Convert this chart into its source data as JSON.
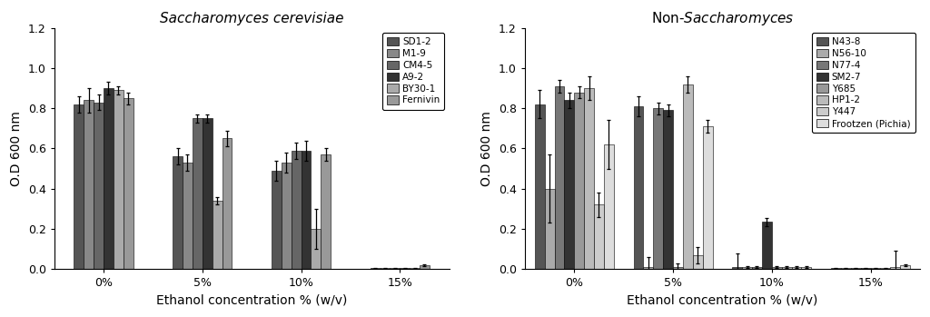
{
  "left_title": "Saccharomyces cerevisiae",
  "right_title_normal": "Non-",
  "right_title_italic": "Saccharomyces",
  "ylabel": "O.D 600 nm",
  "xlabel": "Ethanol concentration % (w/v)",
  "xtick_labels": [
    "0%",
    "5%",
    "10%",
    "15%"
  ],
  "ylim": [
    0.0,
    1.2
  ],
  "yticks": [
    0.0,
    0.2,
    0.4,
    0.6,
    0.8,
    1.0,
    1.2
  ],
  "left_series": {
    "labels": [
      "SD1-2",
      "M1-9",
      "CM4-5",
      "A9-2",
      "BY30-1",
      "Fernivin"
    ],
    "colors": [
      "#555555",
      "#888888",
      "#666666",
      "#333333",
      "#aaaaaa",
      "#999999"
    ],
    "values": [
      [
        0.82,
        0.56,
        0.49,
        0.005
      ],
      [
        0.84,
        0.53,
        0.53,
        0.005
      ],
      [
        0.83,
        0.75,
        0.59,
        0.005
      ],
      [
        0.9,
        0.75,
        0.59,
        0.005
      ],
      [
        0.89,
        0.34,
        0.2,
        0.005
      ],
      [
        0.85,
        0.65,
        0.57,
        0.02
      ]
    ],
    "errors": [
      [
        0.04,
        0.04,
        0.05,
        0.003
      ],
      [
        0.06,
        0.04,
        0.05,
        0.003
      ],
      [
        0.04,
        0.02,
        0.04,
        0.003
      ],
      [
        0.03,
        0.02,
        0.05,
        0.003
      ],
      [
        0.02,
        0.02,
        0.1,
        0.003
      ],
      [
        0.03,
        0.04,
        0.03,
        0.003
      ]
    ]
  },
  "right_series": {
    "labels": [
      "N43-8",
      "N56-10",
      "N77-4",
      "SM2-7",
      "Y685",
      "HP1-2",
      "Y447",
      "Frootzen (Pichia)"
    ],
    "colors": [
      "#555555",
      "#aaaaaa",
      "#777777",
      "#333333",
      "#999999",
      "#bbbbbb",
      "#cccccc",
      "#dddddd"
    ],
    "values": [
      [
        0.82,
        0.81,
        0.01,
        0.005
      ],
      [
        0.4,
        0.01,
        0.01,
        0.005
      ],
      [
        0.91,
        0.8,
        0.01,
        0.005
      ],
      [
        0.84,
        0.79,
        0.235,
        0.005
      ],
      [
        0.88,
        0.01,
        0.01,
        0.005
      ],
      [
        0.9,
        0.92,
        0.01,
        0.005
      ],
      [
        0.32,
        0.07,
        0.01,
        0.01
      ],
      [
        0.62,
        0.71,
        0.01,
        0.02
      ]
    ],
    "errors": [
      [
        0.07,
        0.05,
        0.07,
        0.003
      ],
      [
        0.17,
        0.05,
        0.003,
        0.003
      ],
      [
        0.03,
        0.03,
        0.003,
        0.003
      ],
      [
        0.04,
        0.03,
        0.02,
        0.003
      ],
      [
        0.03,
        0.02,
        0.003,
        0.003
      ],
      [
        0.06,
        0.04,
        0.003,
        0.003
      ],
      [
        0.06,
        0.04,
        0.003,
        0.08
      ],
      [
        0.12,
        0.03,
        0.003,
        0.003
      ]
    ]
  }
}
